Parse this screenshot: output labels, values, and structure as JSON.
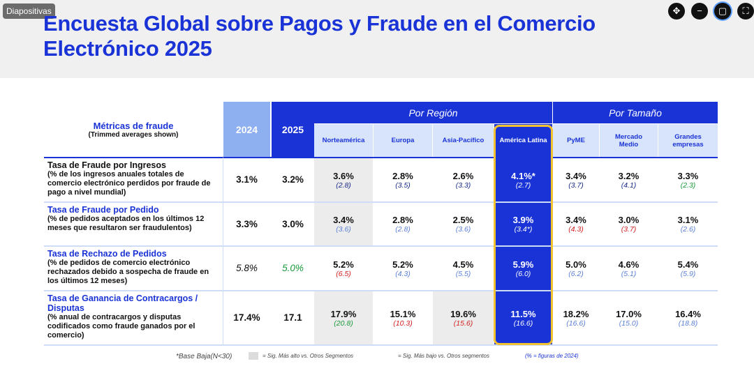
{
  "badge": "Diapositivas",
  "title_line1": "Encuesta Global sobre Pagos y Fraude en el Comercio",
  "title_line2": "Electrónico 2025",
  "window_controls": [
    {
      "name": "move-icon",
      "glyph": "✥"
    },
    {
      "name": "minimize-icon",
      "glyph": "−"
    },
    {
      "name": "restore-icon",
      "glyph": "▢"
    },
    {
      "name": "fullscreen-icon",
      "glyph": "⛶"
    }
  ],
  "table": {
    "metrics_header": "Métricas de fraude",
    "metrics_subheader": "(Trimmed averages shown)",
    "year_2024": "2024",
    "year_2025": "2025",
    "region_header": "Por Región",
    "size_header": "Por Tamaño",
    "regions": [
      "Norteamérica",
      "Europa",
      "Asia-Pacífico",
      "América Latina"
    ],
    "sizes": [
      "PyME",
      "Mercado Medio",
      "Grandes empresas"
    ],
    "rows": [
      {
        "title": "Tasa de Fraude por Ingresos",
        "desc": "(% de los ingresos anuales totales de comercio electrónico perdidos por fraude de pago a nivel mundial)",
        "y2024": "3.1%",
        "y2025": "3.2%",
        "cells": [
          {
            "v": "3.6%",
            "p": "(2.8)"
          },
          {
            "v": "2.8%",
            "p": "(3.5)"
          },
          {
            "v": "2.6%",
            "p": "(3.3)"
          },
          {
            "v": "4.1%*",
            "p": "(2.7)"
          },
          {
            "v": "3.4%",
            "p": "(3.7)"
          },
          {
            "v": "3.2%",
            "p": "(4.1)"
          },
          {
            "v": "3.3%",
            "p": "(2.3)"
          }
        ]
      },
      {
        "title": "Tasa de Fraude por Pedido",
        "desc": "(% de pedidos aceptados en los últimos 12 meses que resultaron ser fraudulentos)",
        "y2024": "3.3%",
        "y2025": "3.0%",
        "cells": [
          {
            "v": "3.4%",
            "p": "(3.6)"
          },
          {
            "v": "2.8%",
            "p": "(2.8)"
          },
          {
            "v": "2.5%",
            "p": "(3.6)"
          },
          {
            "v": "3.9%",
            "p": "(3.4*)"
          },
          {
            "v": "3.4%",
            "p": "(4.3)"
          },
          {
            "v": "3.0%",
            "p": "(3.7)"
          },
          {
            "v": "3.1%",
            "p": "(2.6)"
          }
        ]
      },
      {
        "title": "Tasa de Rechazo de Pedidos",
        "desc": "(% de pedidos de comercio electrónico rechazados debido a sospecha de fraude en los últimos 12 meses)",
        "y2024": "5.8%",
        "y2025": "5.0%",
        "cells": [
          {
            "v": "5.2%",
            "p": "(6.5)"
          },
          {
            "v": "5.2%",
            "p": "(4.3)"
          },
          {
            "v": "4.5%",
            "p": "(5.5)"
          },
          {
            "v": "5.9%",
            "p": "(6.0)"
          },
          {
            "v": "5.0%",
            "p": "(6.2)"
          },
          {
            "v": "4.6%",
            "p": "(5.1)"
          },
          {
            "v": "5.4%",
            "p": "(5.9)"
          }
        ]
      },
      {
        "title": "Tasa de Ganancia de Contracargos / Disputas",
        "desc": "(% anual de contracargos y disputas codificados como fraude ganados por el comercio)",
        "y2024": "17.4%",
        "y2025": "17.1",
        "cells": [
          {
            "v": "17.9%",
            "p": "(20.8)"
          },
          {
            "v": "15.1%",
            "p": "(10.3)"
          },
          {
            "v": "19.6%",
            "p": "(15.6)"
          },
          {
            "v": "11.5%",
            "p": "(16.6)"
          },
          {
            "v": "18.2%",
            "p": "(16.6)"
          },
          {
            "v": "17.0%",
            "p": "(15.0)"
          },
          {
            "v": "16.4%",
            "p": "(18.8)"
          }
        ]
      }
    ]
  },
  "legend": {
    "base_note": "*Base Baja(N<30)",
    "higher": "= Sig. Más alto vs. Otros Segmentos",
    "lower": "= Sig. Más bajo vs. Otros segmentos",
    "figures": "(% = figuras de 2024)"
  },
  "colors": {
    "brand_blue": "#1a33d6",
    "header_light": "#8fb0f0",
    "highlight_frame": "#f2c230",
    "prior_higher_red": "#d22020",
    "prior_lower_green": "#1a9a3a",
    "prior_neutral_blue": "#5a7fd6",
    "prior_dark_blue": "#1a2a8a"
  }
}
